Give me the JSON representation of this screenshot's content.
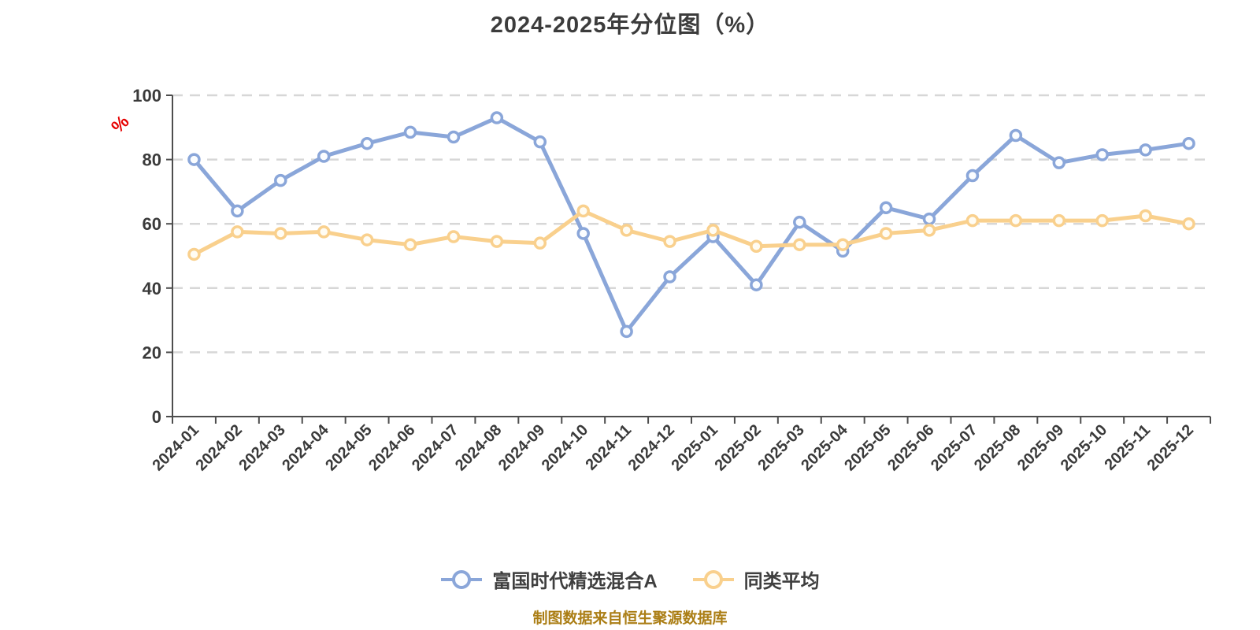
{
  "title": "2024-2025年分位图（%）",
  "caption": "制图数据来自恒生聚源数据库",
  "colors": {
    "background": "#FFFFFF",
    "title_text": "#3C3C3C",
    "tick_text": "#3A3A3A",
    "axis": "#4D4D4D",
    "grid": "#D7D7D7",
    "ylabel_text": "#E60000",
    "legend_text": "#3F3F3F",
    "caption_text": "#AB7E15",
    "fund_line": "#8AA6D9",
    "avg_line": "#F9D08D"
  },
  "chart_data": {
    "type": "line",
    "title": "2024-2025年分位图（%）",
    "xlabel": "",
    "ylabel": "%",
    "ylim": [
      0,
      100
    ],
    "yticks": [
      0,
      20,
      40,
      60,
      80,
      100
    ],
    "grid": "horizontal-dashed",
    "legend_position": "bottom",
    "x_tick_rotation": -45,
    "categories": [
      "2024-01",
      "2024-02",
      "2024-03",
      "2024-04",
      "2024-05",
      "2024-06",
      "2024-07",
      "2024-08",
      "2024-09",
      "2024-10",
      "2024-11",
      "2024-12",
      "2025-01",
      "2025-02",
      "2025-03",
      "2025-04",
      "2025-05",
      "2025-06",
      "2025-07",
      "2025-08",
      "2025-09",
      "2025-10",
      "2025-11",
      "2025-12"
    ],
    "series": [
      {
        "name": "富国时代精选混合A",
        "color": "#8AA6D9",
        "marker_fill": "#FBFDFF",
        "values": [
          80,
          64,
          73.5,
          81,
          85,
          88.5,
          87,
          93,
          85.5,
          57,
          26.5,
          43.5,
          56,
          41,
          60.5,
          51.5,
          65,
          61.5,
          75,
          87.5,
          79,
          81.5,
          83,
          85
        ]
      },
      {
        "name": "同类平均",
        "color": "#F9D08D",
        "marker_fill": "#FFFCF3",
        "values": [
          50.5,
          57.5,
          57,
          57.5,
          55,
          53.5,
          56,
          54.5,
          54,
          64,
          58,
          54.5,
          58,
          53,
          53.5,
          53.5,
          57,
          58,
          61,
          61,
          61,
          61,
          62.5,
          60
        ]
      }
    ]
  }
}
